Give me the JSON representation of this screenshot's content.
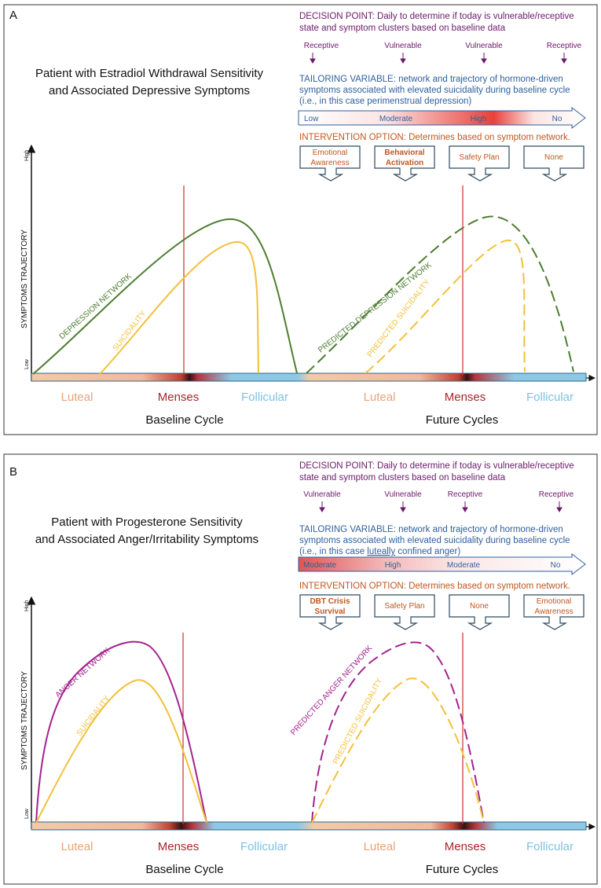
{
  "panels": [
    {
      "id": "A",
      "label": "A",
      "title_line1": "Patient with Estradiol Withdrawal Sensitivity",
      "title_line2": "and Associated Depressive Symptoms",
      "decision_line1": "DECISION POINT: Daily to determine if today is vulnerable/receptive",
      "decision_line2": "state and symptom clusters based on baseline data",
      "states": [
        "Receptive",
        "Vulnerable",
        "Vulnerable",
        "Receptive"
      ],
      "tailoring_line1": "TAILORING VARIABLE: network and trajectory of hormone-driven",
      "tailoring_line2": "symptoms associated with elevated suicidality during baseline cycle",
      "tailoring_line3_pre": "(i.e., in this case perimenstrual depression)",
      "tailoring_line3_ul": "",
      "tailoring_line3_post": "",
      "risk_levels": [
        "Low",
        "Moderate",
        "High",
        "No"
      ],
      "intervention_header": "INTERVENTION OPTION: Determines based on symptom network.",
      "interventions": [
        {
          "lines": [
            "Emotional",
            "Awareness"
          ],
          "bold": false
        },
        {
          "lines": [
            "Behavioral",
            "Activation"
          ],
          "bold": true
        },
        {
          "lines": [
            "Safety Plan"
          ],
          "bold": false
        },
        {
          "lines": [
            "None"
          ],
          "bold": false
        }
      ],
      "axis_y_label": "SYMPTOMS TRAJECTORY",
      "axis_high": "High",
      "axis_low": "Low",
      "curve_labels": {
        "network": "DEPRESSION NETWORK",
        "suicidality": "SUICIDALITY",
        "predicted_network": "PREDICTED DEPRESSION NETWORK",
        "predicted_suicidality": "PREDICTED SUICIDALITY"
      },
      "phases": [
        "Luteal",
        "Menses",
        "Follicular",
        "Luteal",
        "Menses",
        "Follicular"
      ],
      "cycle_labels": [
        "Baseline Cycle",
        "Future Cycles"
      ]
    },
    {
      "id": "B",
      "label": "B",
      "title_line1": "Patient with Progesterone Sensitivity",
      "title_line2": "and Associated Anger/Irritability Symptoms",
      "decision_line1": "DECISION POINT: Daily to determine if today is vulnerable/receptive",
      "decision_line2": "state and symptom clusters based on baseline data",
      "states": [
        "Vulnerable",
        "Vulnerable",
        "Receptive",
        "Receptive"
      ],
      "tailoring_line1": "TAILORING VARIABLE: network and trajectory of hormone-driven",
      "tailoring_line2": "symptoms associated with elevated suicidality during baseline cycle",
      "tailoring_line3_pre": "(i.e., in this case ",
      "tailoring_line3_ul": "luteally",
      "tailoring_line3_post": " confined anger)",
      "risk_levels": [
        "Moderate",
        "High",
        "Moderate",
        "No"
      ],
      "intervention_header": "INTERVENTION OPTION: Determines based on symptom network.",
      "interventions": [
        {
          "lines": [
            "DBT Crisis",
            "Survival"
          ],
          "bold": true
        },
        {
          "lines": [
            "Safety Plan"
          ],
          "bold": false
        },
        {
          "lines": [
            "None"
          ],
          "bold": false
        },
        {
          "lines": [
            "Emotional",
            "Awareness"
          ],
          "bold": false
        }
      ],
      "axis_y_label": "SYMPTOMS TRAJECTORY",
      "axis_high": "High",
      "axis_low": "Low",
      "curve_labels": {
        "network": "ANGER NETWORK",
        "suicidality": "SUICIDALITY",
        "predicted_network": "PREDICTED ANGER NETWORK",
        "predicted_suicidality": "PREDICTED SUICIDALITY"
      },
      "phases": [
        "Luteal",
        "Menses",
        "Follicular",
        "Luteal",
        "Menses",
        "Follicular"
      ],
      "cycle_labels": [
        "Baseline Cycle",
        "Future Cycles"
      ]
    }
  ],
  "colors": {
    "purple_text": "#6b1a6b",
    "blue_text": "#2e5f9e",
    "orange_text": "#c0571f",
    "depression_green": "#4e7d31",
    "anger_magenta": "#a3228f",
    "suicidality_yellow": "#f4c03a",
    "menses_line": "#c8322a",
    "luteal_text": "#e8a37a",
    "menses_text": "#a8262a",
    "follicular_text": "#7ec1e0"
  }
}
